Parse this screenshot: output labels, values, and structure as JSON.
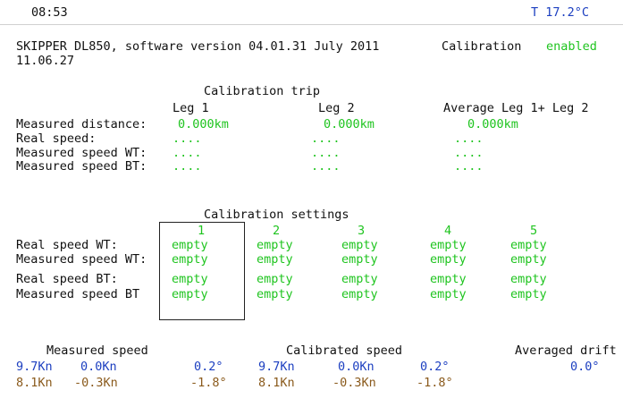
{
  "top_bar": {
    "time": "08:53",
    "temperature": "T 17.2°C"
  },
  "header": {
    "device": "SKIPPER DL850, software version 04.01.31 July 2011",
    "date": "11.06.27",
    "calibration_label": "Calibration",
    "calibration_state": "enabled"
  },
  "calibration_trip": {
    "title": "Calibration trip",
    "columns": [
      "Leg 1",
      "Leg 2",
      "Average Leg 1+ Leg 2"
    ],
    "rows": [
      {
        "label": "Measured distance:",
        "values": [
          "0.000km",
          "0.000km",
          "0.000km"
        ]
      },
      {
        "label": "Real speed:",
        "values": [
          "....",
          "....",
          "...."
        ]
      },
      {
        "label": "Measured speed WT:",
        "values": [
          "....",
          "....",
          "...."
        ]
      },
      {
        "label": "Measured speed BT:",
        "values": [
          "....",
          "....",
          "...."
        ]
      }
    ]
  },
  "calibration_settings": {
    "title": "Calibration settings",
    "columns": [
      "1",
      "2",
      "3",
      "4",
      "5"
    ],
    "rows": [
      {
        "label": "Real speed WT:",
        "values": [
          "empty",
          "empty",
          "empty",
          "empty",
          "empty"
        ]
      },
      {
        "label": "Measured speed WT:",
        "values": [
          "empty",
          "empty",
          "empty",
          "empty",
          "empty"
        ]
      },
      {
        "label": "Real speed BT:",
        "values": [
          "empty",
          "empty",
          "empty",
          "empty",
          "empty"
        ]
      },
      {
        "label": "Measured speed BT",
        "values": [
          "empty",
          "empty",
          "empty",
          "empty",
          "empty"
        ]
      }
    ]
  },
  "speeds": {
    "headers": [
      "Measured speed",
      "Calibrated speed",
      "Averaged drift"
    ],
    "rows": [
      [
        "9.7Kn",
        "0.0Kn",
        "0.2°",
        "9.7Kn",
        "0.0Kn",
        "0.2°",
        "0.0°"
      ],
      [
        "8.1Kn",
        "-0.3Kn",
        "-1.8°",
        "8.1Kn",
        "-0.3Kn",
        "-1.8°"
      ]
    ]
  }
}
